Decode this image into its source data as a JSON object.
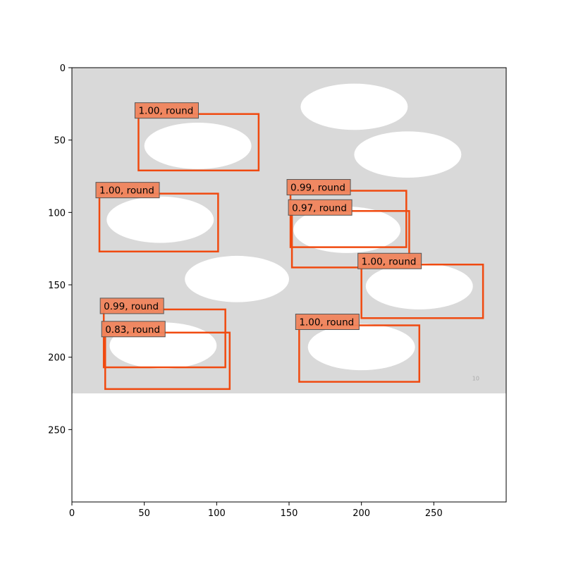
{
  "figure": {
    "x_ticks": [
      "0",
      "50",
      "100",
      "150",
      "200",
      "250"
    ],
    "y_ticks": [
      "0",
      "50",
      "100",
      "150",
      "200",
      "250"
    ],
    "xlim": [
      0,
      300
    ],
    "ylim_top_to_bottom": [
      0,
      300
    ],
    "image_extent": {
      "x": [
        0,
        300
      ],
      "y": [
        0,
        225
      ]
    },
    "image_background": "#d9d9d9",
    "blob_color": "#ffffff",
    "box_color": "#f04a10",
    "label_fill": "#f0845c",
    "label_border": "#555555",
    "watermark": "10"
  },
  "blobs": [
    {
      "cx": 195,
      "cy": 27,
      "rx": 37,
      "ry": 16
    },
    {
      "cx": 232,
      "cy": 60,
      "rx": 37,
      "ry": 16
    },
    {
      "cx": 87,
      "cy": 54,
      "rx": 37,
      "ry": 16
    },
    {
      "cx": 61,
      "cy": 105,
      "rx": 37,
      "ry": 16
    },
    {
      "cx": 190,
      "cy": 112,
      "rx": 37,
      "ry": 16
    },
    {
      "cx": 114,
      "cy": 146,
      "rx": 36,
      "ry": 16
    },
    {
      "cx": 240,
      "cy": 151,
      "rx": 37,
      "ry": 16
    },
    {
      "cx": 63,
      "cy": 192,
      "rx": 37,
      "ry": 16
    },
    {
      "cx": 200,
      "cy": 193,
      "rx": 37,
      "ry": 16
    }
  ],
  "detections": [
    {
      "label": "1.00, round",
      "x1": 46,
      "y1": 32,
      "x2": 129,
      "y2": 71
    },
    {
      "label": "1.00, round",
      "x1": 19,
      "y1": 87,
      "x2": 101,
      "y2": 127
    },
    {
      "label": "0.99, round",
      "x1": 151,
      "y1": 85,
      "x2": 231,
      "y2": 124
    },
    {
      "label": "0.97, round",
      "x1": 152,
      "y1": 99,
      "x2": 233,
      "y2": 138
    },
    {
      "label": "1.00, round",
      "x1": 200,
      "y1": 136,
      "x2": 284,
      "y2": 173
    },
    {
      "label": "0.99, round",
      "x1": 22,
      "y1": 167,
      "x2": 106,
      "y2": 207
    },
    {
      "label": "0.83, round",
      "x1": 23,
      "y1": 183,
      "x2": 109,
      "y2": 222
    },
    {
      "label": "1.00, round",
      "x1": 157,
      "y1": 178,
      "x2": 240,
      "y2": 217
    }
  ]
}
